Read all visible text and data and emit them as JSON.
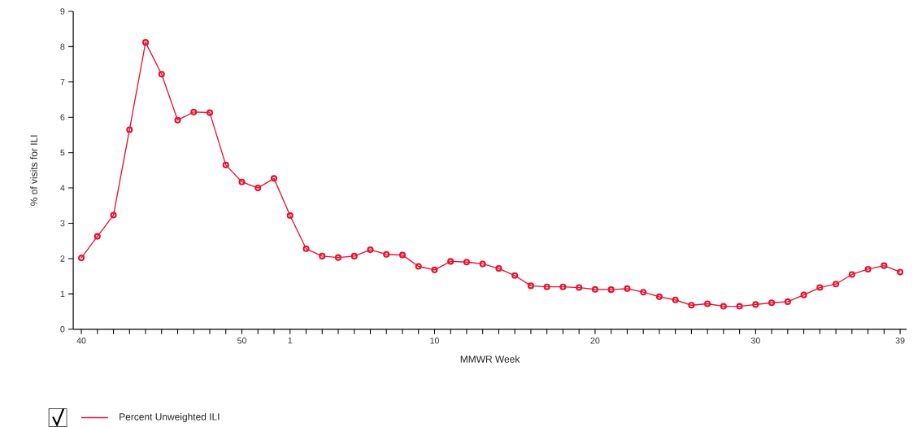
{
  "chart_data": {
    "type": "line",
    "xlabel": "MMWR Week",
    "ylabel": "% of visits for ILI",
    "categories": [
      "40",
      null,
      null,
      null,
      null,
      null,
      null,
      null,
      null,
      null,
      "50",
      null,
      null,
      "1",
      null,
      null,
      null,
      null,
      null,
      null,
      null,
      null,
      "10",
      null,
      null,
      null,
      null,
      null,
      null,
      null,
      null,
      null,
      "20",
      null,
      null,
      null,
      null,
      null,
      null,
      null,
      null,
      null,
      "30",
      null,
      null,
      null,
      null,
      null,
      null,
      null,
      null,
      "39"
    ],
    "series": [
      {
        "name": "Percent Unweighted ILI",
        "color": "#e8112d",
        "values": [
          2.02,
          2.63,
          3.23,
          5.65,
          8.12,
          7.22,
          5.92,
          6.15,
          6.13,
          4.65,
          4.17,
          4.0,
          4.27,
          3.22,
          2.28,
          2.07,
          2.03,
          2.07,
          2.25,
          2.12,
          2.1,
          1.78,
          1.68,
          1.92,
          1.9,
          1.85,
          1.72,
          1.52,
          1.23,
          1.2,
          1.2,
          1.18,
          1.13,
          1.12,
          1.15,
          1.05,
          0.92,
          0.83,
          0.68,
          0.72,
          0.65,
          0.65,
          0.7,
          0.75,
          0.78,
          0.97,
          1.18,
          1.28,
          1.55,
          1.7,
          1.8,
          1.62
        ]
      }
    ],
    "ylim": [
      0,
      9
    ],
    "yticks": [
      0,
      1,
      2,
      3,
      4,
      5,
      6,
      7,
      8,
      9
    ],
    "marker": "circle",
    "legend": "bottom left"
  }
}
